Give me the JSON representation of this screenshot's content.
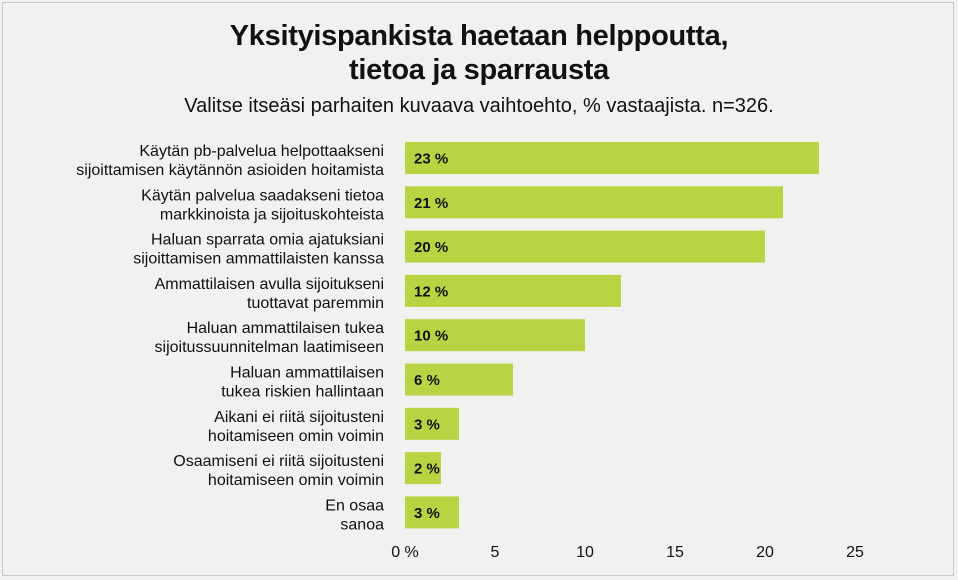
{
  "chart_data": {
    "type": "bar",
    "orientation": "horizontal",
    "title_lines": [
      "Yksityispankista haetaan helppoutta,",
      "tietoa ja sparrausta"
    ],
    "subtitle": "Valitse itseäsi parhaiten kuvaava vaihtoehto, % vastaajista. n=326.",
    "categories": [
      [
        "Käytän pb-palvelua helpottaakseni",
        "sijoittamisen käytännön asioiden hoitamista"
      ],
      [
        "Käytän palvelua saadakseni tietoa",
        "markkinoista ja sijoituskohteista"
      ],
      [
        "Haluan sparrata omia ajatuksiani",
        "sijoittamisen ammattilaisten kanssa"
      ],
      [
        "Ammattilaisen avulla sijoitukseni",
        "tuottavat paremmin"
      ],
      [
        "Haluan ammattilaisen tukea",
        "sijoitussuunnitelman laatimiseen"
      ],
      [
        "Haluan ammattilaisen",
        "tukea riskien hallintaan"
      ],
      [
        "Aikani ei riitä sijoitusteni",
        "hoitamiseen omin voimin"
      ],
      [
        "Osaamiseni ei riitä sijoitusteni",
        "hoitamiseen omin voimin"
      ],
      [
        "En osaa",
        "sanoa"
      ]
    ],
    "values": [
      23,
      21,
      20,
      12,
      10,
      6,
      3,
      2,
      3
    ],
    "value_labels": [
      "23 %",
      "21 %",
      "20 %",
      "12 %",
      "10 %",
      "6 %",
      "3 %",
      "2 %",
      "3 %"
    ],
    "xlim": [
      0,
      25
    ],
    "xticks": [
      0,
      5,
      10,
      15,
      20,
      25
    ],
    "xtick_labels": [
      "0 %",
      "5",
      "10",
      "15",
      "20",
      "25"
    ],
    "grid": false,
    "bar_color": "#b9d443",
    "background": "#f1f1f0"
  }
}
